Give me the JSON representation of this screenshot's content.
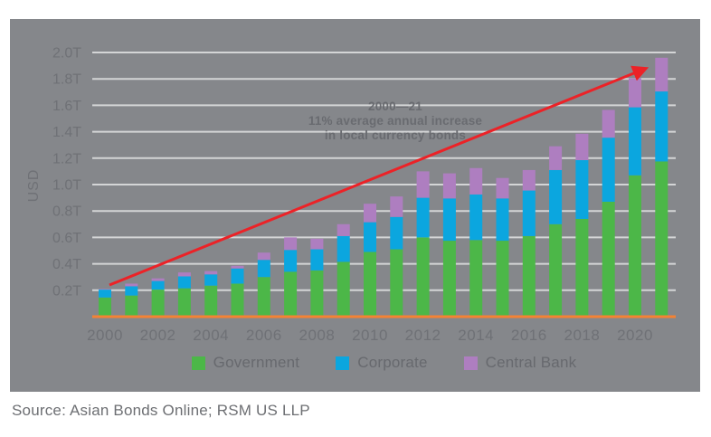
{
  "figure": {
    "panel_background": "#85878B",
    "page_background": "#FFFFFF"
  },
  "axis": {
    "usd_label": "USD",
    "y_tick_labels": [
      "0.2T",
      "0.4T",
      "0.6T",
      "0.8T",
      "1.0T",
      "1.2T",
      "1.4T",
      "1.6T",
      "1.8T",
      "2.0T"
    ],
    "x_tick_labels": [
      "2000",
      "2002",
      "2004",
      "2006",
      "2008",
      "2010",
      "2012",
      "2014",
      "2016",
      "2018",
      "2020"
    ]
  },
  "annotation": {
    "line1": "2000—21",
    "line2": "11% average annual increase",
    "line3": "in local currency bonds"
  },
  "legend": [
    {
      "label": "Government",
      "color": "#4CB748"
    },
    {
      "label": "Corporate",
      "color": "#0BA6DF"
    },
    {
      "label": "Central Bank",
      "color": "#AE7EC0"
    }
  ],
  "source": "Source: Asian Bonds Online; RSM US LLP",
  "colors": {
    "government": "#4CB748",
    "corporate": "#0BA6DF",
    "central_bank": "#AE7EC0",
    "baseline_axis": "#F58233",
    "trend_arrow": "#EC2227",
    "gridline": "rgba(255,255,255,0.65)",
    "tick_text": "#6F7176"
  },
  "chart_data": {
    "type": "bar",
    "stacked": true,
    "title": "",
    "xlabel": "",
    "ylabel": "USD",
    "ylim": [
      0,
      2.0
    ],
    "y_tick_step": 0.2,
    "grid": true,
    "legend_position": "bottom",
    "unit": "trillions USD",
    "categories": [
      2000,
      2001,
      2002,
      2003,
      2004,
      2005,
      2006,
      2007,
      2008,
      2009,
      2010,
      2011,
      2012,
      2013,
      2014,
      2015,
      2016,
      2017,
      2018,
      2019,
      2020,
      2021
    ],
    "series": [
      {
        "name": "Government",
        "color": "#4CB748",
        "values": [
          0.145,
          0.16,
          0.205,
          0.215,
          0.235,
          0.25,
          0.3,
          0.34,
          0.35,
          0.415,
          0.49,
          0.51,
          0.6,
          0.575,
          0.58,
          0.575,
          0.61,
          0.7,
          0.74,
          0.87,
          1.07,
          1.175
        ]
      },
      {
        "name": "Corporate",
        "color": "#0BA6DF",
        "values": [
          0.06,
          0.07,
          0.065,
          0.09,
          0.085,
          0.115,
          0.13,
          0.165,
          0.16,
          0.195,
          0.225,
          0.245,
          0.3,
          0.32,
          0.345,
          0.32,
          0.345,
          0.41,
          0.445,
          0.485,
          0.515,
          0.53
        ]
      },
      {
        "name": "Central Bank",
        "color": "#AE7EC0",
        "values": [
          0.005,
          0.02,
          0.02,
          0.03,
          0.025,
          0.02,
          0.055,
          0.095,
          0.08,
          0.09,
          0.14,
          0.155,
          0.2,
          0.19,
          0.2,
          0.155,
          0.155,
          0.18,
          0.2,
          0.21,
          0.22,
          0.255
        ]
      }
    ],
    "totals": [
      0.21,
      0.25,
      0.29,
      0.335,
      0.345,
      0.385,
      0.485,
      0.6,
      0.59,
      0.7,
      0.855,
      0.91,
      1.1,
      1.085,
      1.125,
      1.05,
      1.11,
      1.29,
      1.385,
      1.565,
      1.805,
      1.96
    ],
    "annotation_text": "2000—21 11% average annual increase in local currency bonds",
    "trend_arrow": {
      "from": [
        2000,
        0.24
      ],
      "to": [
        2021,
        1.93
      ],
      "color": "#EC2227"
    }
  }
}
